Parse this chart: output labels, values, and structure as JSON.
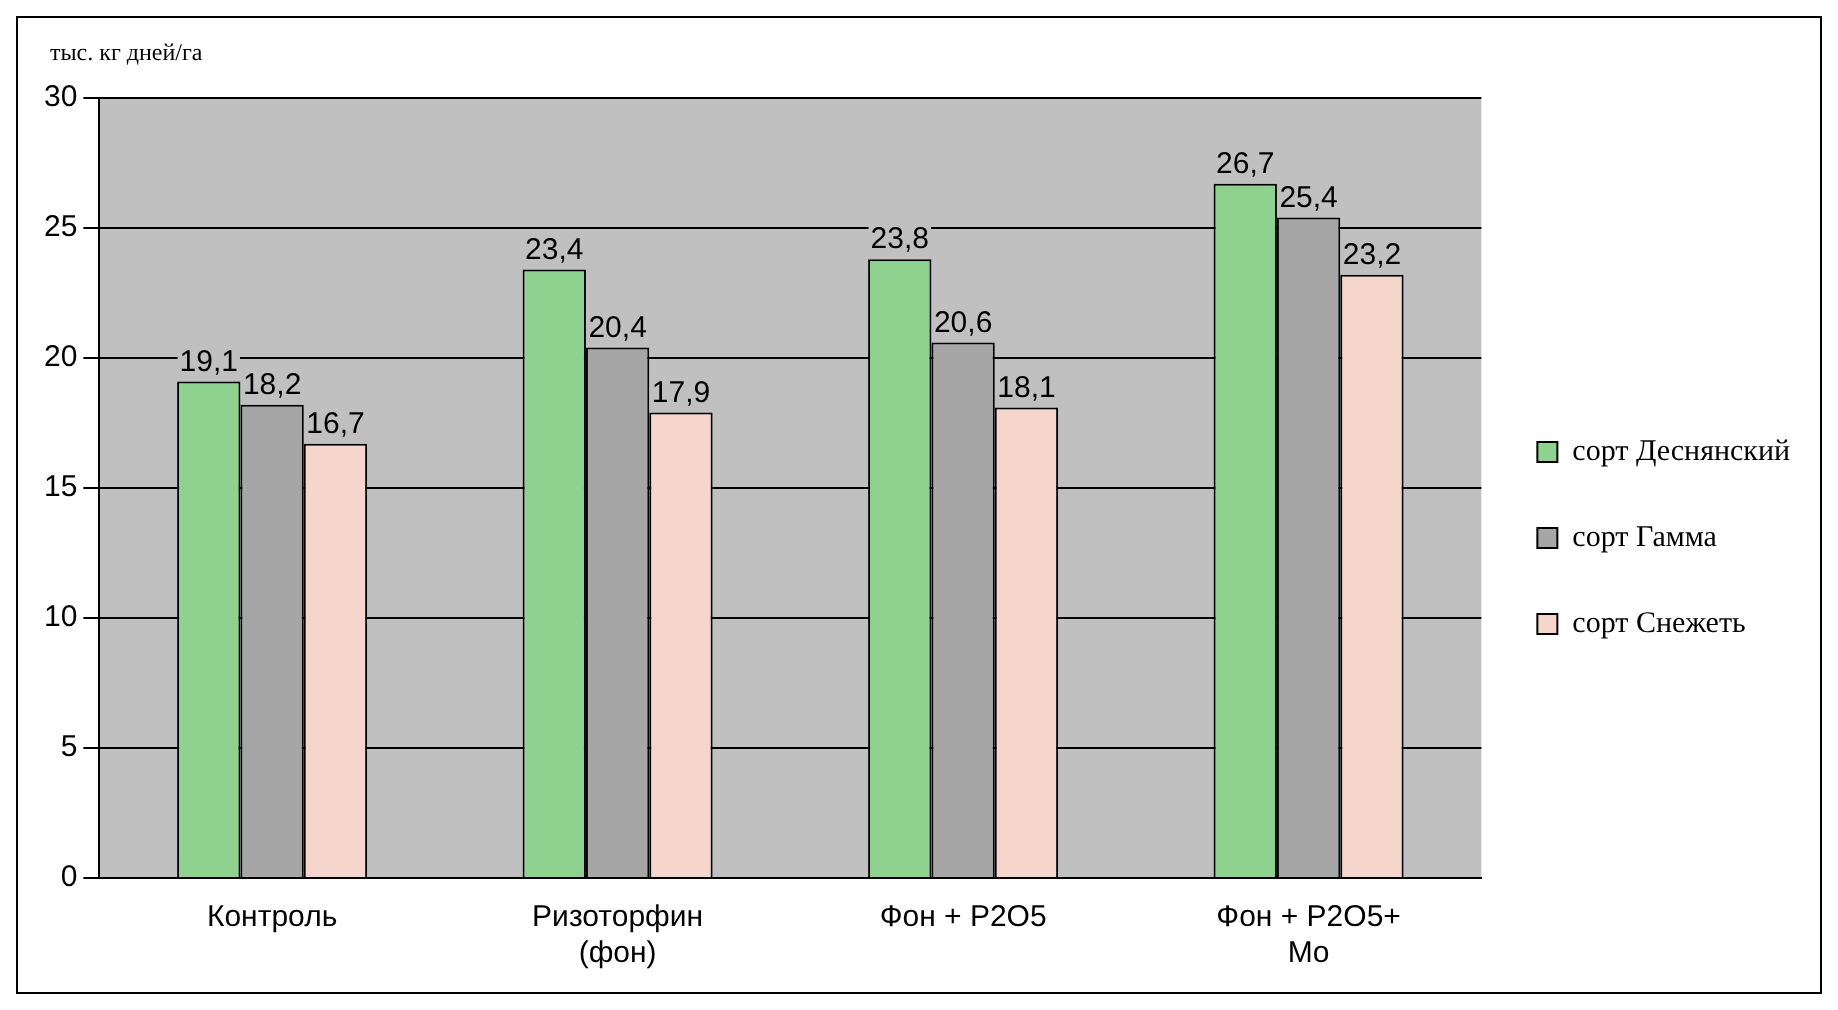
{
  "chart_data": {
    "type": "bar",
    "ylabel": "тыс. кг дней/га",
    "categories": [
      "Контроль",
      "Ризоторфин (фон)",
      "Фон + P2O5",
      "Фон + P2O5+ Mo"
    ],
    "series": [
      {
        "name": "сорт Деснянский",
        "color": "#8fd18f",
        "values": [
          19.1,
          23.4,
          23.8,
          26.7
        ],
        "value_labels": [
          "19,1",
          "23,4",
          "23,8",
          "26,7"
        ]
      },
      {
        "name": "сорт Гамма",
        "color": "#a6a6a6",
        "values": [
          18.2,
          20.4,
          20.6,
          25.4
        ],
        "value_labels": [
          "18,2",
          "20,4",
          "20,6",
          "25,4"
        ]
      },
      {
        "name": "сорт Снежеть",
        "color": "#f6d6cc",
        "values": [
          16.7,
          17.9,
          18.1,
          23.2
        ],
        "value_labels": [
          "16,7",
          "17,9",
          "18,1",
          "23,2"
        ]
      }
    ],
    "ylim": [
      0,
      30
    ],
    "yticks": [
      0,
      5,
      10,
      15,
      20,
      25,
      30
    ],
    "grid": "y",
    "legend": "right"
  }
}
